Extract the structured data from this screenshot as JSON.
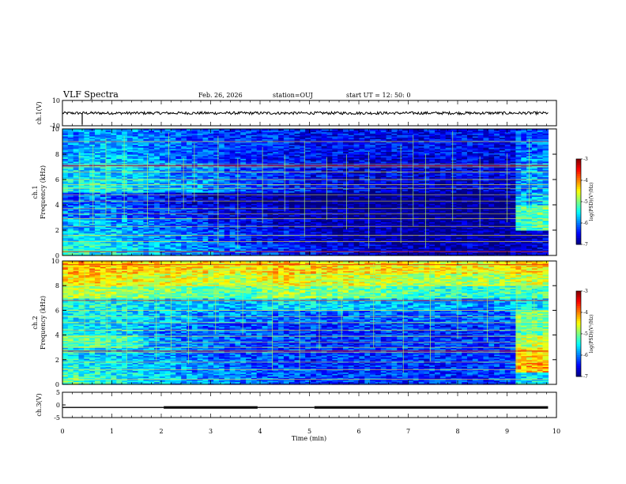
{
  "header": {
    "title": "VLF Spectra",
    "date": "Feb. 26, 2026",
    "station": "station=OUJ",
    "start_ut": "start  UT =   12: 50: 0"
  },
  "chart_data": {
    "type": "heatmap",
    "x_axis": {
      "label": "Time (min)",
      "range": [
        0,
        10
      ],
      "ticks": [
        "0",
        "1",
        "2",
        "3",
        "4",
        "5",
        "6",
        "7",
        "8",
        "9",
        "10"
      ]
    },
    "panels": [
      {
        "id": "ch1-waveform",
        "type": "line",
        "ylabel": "ch.1(V)",
        "ylim": [
          -10,
          10
        ],
        "yticks": [
          "10",
          "-10"
        ],
        "baseline_v": 0,
        "spikes": [
          {
            "t": 0.4,
            "v": -9
          }
        ]
      },
      {
        "id": "ch1-spectrogram",
        "type": "heatmap",
        "ylabel": "ch.1\nFrequency (kHz)",
        "ylim": [
          0,
          10
        ],
        "yticks": [
          "0",
          "2",
          "4",
          "6",
          "8",
          "10"
        ],
        "data_end_min": 9.83,
        "colorbar": {
          "label": "log(PSD)(V²/Hz)",
          "range": [
            -7,
            -3
          ],
          "ticks": [
            "-3",
            "-4",
            "-5",
            "-6",
            "-7"
          ]
        },
        "grid_rows": [
          [
            -5.4,
            -5.4,
            -5.5,
            -5.5,
            -5.6,
            -5.7,
            -5.8,
            -5.9,
            -6.0,
            -6.0,
            -6.1,
            -6.2,
            -6.3,
            -6.3,
            -6.4,
            -6.5,
            -6.6,
            -6.6,
            -6.7,
            -6.7,
            -6.8,
            -6.8,
            -6.8,
            -6.8,
            -6.8,
            -6.8,
            -6.8,
            -6.8,
            -6.8,
            -6.7
          ],
          [
            -5.6,
            -5.6,
            -5.6,
            -5.7,
            -5.8,
            -5.9,
            -6.0,
            -6.0,
            -6.1,
            -6.2,
            -6.3,
            -6.4,
            -6.4,
            -6.5,
            -6.6,
            -6.7,
            -6.7,
            -6.8,
            -6.8,
            -6.8,
            -6.9,
            -6.9,
            -6.9,
            -6.9,
            -6.9,
            -6.9,
            -6.9,
            -6.9,
            -6.9,
            -6.7
          ],
          [
            -5.8,
            -5.8,
            -5.8,
            -5.9,
            -6.0,
            -6.1,
            -6.2,
            -6.2,
            -6.3,
            -6.4,
            -6.5,
            -6.5,
            -6.6,
            -6.7,
            -6.7,
            -6.8,
            -6.8,
            -6.9,
            -6.9,
            -6.9,
            -6.9,
            -6.9,
            -6.9,
            -6.9,
            -6.9,
            -6.9,
            -6.9,
            -6.9,
            -5.3,
            -5.2
          ],
          [
            -6.0,
            -6.0,
            -6.0,
            -6.1,
            -6.2,
            -6.3,
            -6.3,
            -6.4,
            -6.5,
            -6.6,
            -6.6,
            -6.7,
            -6.7,
            -6.8,
            -6.8,
            -6.9,
            -6.9,
            -6.9,
            -7.0,
            -7.0,
            -7.0,
            -7.0,
            -7.0,
            -7.0,
            -7.0,
            -7.0,
            -7.0,
            -7.0,
            -5.2,
            -5.1
          ],
          [
            -6.2,
            -6.1,
            -6.1,
            -6.2,
            -6.3,
            -6.4,
            -6.5,
            -6.6,
            -6.7,
            -6.7,
            -6.8,
            -6.8,
            -6.9,
            -6.9,
            -7.0,
            -7.0,
            -7.0,
            -7.0,
            -7.0,
            -7.0,
            -7.0,
            -7.0,
            -7.0,
            -7.0,
            -7.0,
            -7.0,
            -7.0,
            -7.0,
            -5.8,
            -5.7
          ],
          [
            -5.5,
            -5.4,
            -5.4,
            -5.5,
            -5.6,
            -5.7,
            -5.8,
            -5.9,
            -5.9,
            -6.0,
            -6.1,
            -6.2,
            -6.3,
            -6.3,
            -6.4,
            -6.5,
            -6.5,
            -6.6,
            -6.6,
            -6.6,
            -6.7,
            -6.7,
            -6.7,
            -6.7,
            -6.7,
            -6.7,
            -6.7,
            -6.7,
            -6.0,
            -5.9
          ],
          [
            -5.6,
            -5.6,
            -5.6,
            -5.6,
            -5.7,
            -5.8,
            -5.9,
            -6.0,
            -6.0,
            -6.1,
            -6.2,
            -6.2,
            -6.3,
            -6.4,
            -6.4,
            -6.5,
            -6.5,
            -6.6,
            -6.6,
            -6.6,
            -6.6,
            -6.6,
            -6.6,
            -6.6,
            -6.6,
            -6.6,
            -6.6,
            -6.6,
            -5.9,
            -5.9
          ],
          [
            -5.8,
            -5.7,
            -5.7,
            -5.7,
            -5.8,
            -5.9,
            -6.0,
            -6.1,
            -6.1,
            -6.2,
            -6.3,
            -6.3,
            -6.4,
            -6.4,
            -6.5,
            -6.5,
            -6.6,
            -6.6,
            -6.6,
            -6.6,
            -6.6,
            -6.6,
            -6.6,
            -6.6,
            -6.6,
            -6.6,
            -6.6,
            -6.6,
            -6.0,
            -6.0
          ],
          [
            -5.9,
            -5.8,
            -5.8,
            -5.8,
            -5.9,
            -6.0,
            -6.1,
            -6.1,
            -6.2,
            -6.2,
            -6.3,
            -6.3,
            -6.4,
            -6.4,
            -6.5,
            -6.5,
            -6.5,
            -6.5,
            -6.5,
            -6.5,
            -6.5,
            -6.5,
            -6.5,
            -6.5,
            -6.5,
            -6.5,
            -6.5,
            -6.5,
            -6.1,
            -6.1
          ],
          [
            -6.0,
            -5.9,
            -5.9,
            -5.9,
            -6.0,
            -6.1,
            -6.1,
            -6.2,
            -6.2,
            -6.3,
            -6.3,
            -6.3,
            -6.4,
            -6.4,
            -6.4,
            -6.5,
            -6.5,
            -6.5,
            -6.5,
            -6.5,
            -6.5,
            -6.5,
            -6.5,
            -6.5,
            -6.5,
            -6.5,
            -6.5,
            -6.5,
            -6.2,
            -6.2
          ]
        ],
        "tones_khz": [
          0.3,
          1.1,
          1.6,
          2.3,
          2.9,
          3.3,
          3.7,
          4.3,
          4.8,
          5.3,
          5.6,
          6.0,
          6.6,
          7.0,
          7.2,
          9.0
        ],
        "red_tones_khz": [
          0.3,
          7.1
        ],
        "sferic_times_min": [
          0.35,
          0.62,
          0.88,
          1.25,
          1.72,
          2.15,
          2.45,
          2.67,
          3.15,
          3.55,
          4.05,
          4.5,
          4.9,
          5.35,
          5.75,
          6.2,
          6.85,
          7.1,
          7.35,
          7.9,
          8.45,
          9.0,
          9.45
        ]
      },
      {
        "id": "ch2-spectrogram",
        "type": "heatmap",
        "ylabel": "ch.2\nFrequency (kHz)",
        "ylim": [
          0,
          10
        ],
        "yticks": [
          "0",
          "2",
          "4",
          "6",
          "8",
          "10"
        ],
        "data_end_min": 9.83,
        "colorbar": {
          "label": "log(PSD)(V²/Hz)",
          "range": [
            -7,
            -3
          ],
          "ticks": [
            "-3",
            "-4",
            "-5",
            "-6",
            "-7"
          ]
        },
        "grid_rows": [
          [
            -5.2,
            -5.3,
            -5.4,
            -5.5,
            -5.6,
            -5.7,
            -5.7,
            -5.8,
            -5.9,
            -5.9,
            -6.0,
            -6.0,
            -6.1,
            -6.1,
            -6.2,
            -6.2,
            -6.2,
            -6.3,
            -6.3,
            -6.3,
            -6.3,
            -6.3,
            -6.3,
            -6.3,
            -6.3,
            -6.3,
            -6.3,
            -6.3,
            -5.6,
            -5.6
          ],
          [
            -5.4,
            -5.5,
            -5.5,
            -5.6,
            -5.7,
            -5.8,
            -5.8,
            -5.9,
            -6.0,
            -6.0,
            -6.1,
            -6.1,
            -6.2,
            -6.2,
            -6.2,
            -6.3,
            -6.3,
            -6.3,
            -6.3,
            -6.3,
            -6.3,
            -6.3,
            -6.3,
            -6.3,
            -6.3,
            -6.3,
            -6.3,
            -6.3,
            -4.2,
            -4.2
          ],
          [
            -5.5,
            -5.6,
            -5.7,
            -5.7,
            -5.8,
            -5.9,
            -5.9,
            -6.0,
            -6.0,
            -6.1,
            -6.1,
            -6.2,
            -6.2,
            -6.2,
            -6.3,
            -6.3,
            -6.3,
            -6.3,
            -6.3,
            -6.3,
            -6.3,
            -6.3,
            -6.3,
            -6.3,
            -6.3,
            -6.3,
            -6.3,
            -6.3,
            -4.4,
            -4.3
          ],
          [
            -5.1,
            -5.1,
            -5.2,
            -5.2,
            -5.4,
            -5.8,
            -5.9,
            -6.0,
            -6.0,
            -6.1,
            -6.1,
            -6.2,
            -6.2,
            -6.2,
            -6.2,
            -6.3,
            -6.3,
            -6.3,
            -6.3,
            -6.3,
            -6.3,
            -6.3,
            -6.3,
            -6.3,
            -6.3,
            -6.3,
            -6.3,
            -6.3,
            -4.8,
            -4.7
          ],
          [
            -5.6,
            -5.6,
            -5.6,
            -5.6,
            -5.7,
            -5.9,
            -6.0,
            -6.0,
            -6.1,
            -6.1,
            -6.2,
            -6.2,
            -6.2,
            -6.3,
            -6.3,
            -6.3,
            -6.3,
            -6.3,
            -6.3,
            -6.3,
            -6.3,
            -6.3,
            -6.3,
            -6.3,
            -6.3,
            -6.3,
            -6.3,
            -6.3,
            -5.2,
            -5.1
          ],
          [
            -5.5,
            -5.5,
            -5.5,
            -5.6,
            -5.6,
            -5.7,
            -5.8,
            -5.8,
            -5.9,
            -5.9,
            -6.0,
            -6.0,
            -6.0,
            -6.1,
            -6.1,
            -6.1,
            -6.1,
            -6.1,
            -6.1,
            -6.1,
            -6.1,
            -6.1,
            -6.1,
            -6.1,
            -6.1,
            -6.1,
            -6.1,
            -6.1,
            -5.0,
            -5.0
          ],
          [
            -5.4,
            -5.4,
            -5.4,
            -5.5,
            -5.5,
            -5.6,
            -5.6,
            -5.7,
            -5.7,
            -5.7,
            -5.8,
            -5.8,
            -5.7,
            -5.6,
            -5.6,
            -5.6,
            -5.6,
            -5.6,
            -5.7,
            -5.7,
            -5.7,
            -5.8,
            -5.8,
            -5.8,
            -5.9,
            -5.9,
            -5.9,
            -5.8,
            -5.6,
            -5.6
          ],
          [
            -4.8,
            -4.8,
            -4.8,
            -4.9,
            -4.9,
            -5.0,
            -5.0,
            -5.1,
            -5.1,
            -5.1,
            -5.2,
            -5.2,
            -5.0,
            -4.9,
            -4.9,
            -5.0,
            -5.0,
            -5.0,
            -5.1,
            -5.1,
            -5.2,
            -5.2,
            -5.3,
            -5.3,
            -5.3,
            -5.3,
            -5.3,
            -5.3,
            -5.2,
            -5.2
          ],
          [
            -4.4,
            -4.4,
            -4.4,
            -4.5,
            -4.5,
            -4.6,
            -4.6,
            -4.6,
            -4.7,
            -4.7,
            -4.7,
            -4.8,
            -4.6,
            -4.5,
            -4.5,
            -4.6,
            -4.6,
            -4.6,
            -4.7,
            -4.7,
            -4.7,
            -4.8,
            -4.8,
            -4.8,
            -4.8,
            -4.8,
            -4.8,
            -4.8,
            -4.7,
            -4.7
          ],
          [
            -4.2,
            -4.2,
            -4.2,
            -4.3,
            -4.3,
            -4.3,
            -4.4,
            -4.4,
            -4.4,
            -4.5,
            -4.5,
            -4.5,
            -4.4,
            -4.3,
            -4.3,
            -4.3,
            -4.4,
            -4.4,
            -4.4,
            -4.4,
            -4.5,
            -4.5,
            -4.5,
            -4.5,
            -4.5,
            -4.5,
            -4.5,
            -4.5,
            -4.4,
            -4.4
          ]
        ],
        "tones_khz": [
          0.4,
          1.2,
          1.8,
          2.6,
          3.0,
          3.4,
          3.9,
          4.4,
          5.0,
          5.5,
          6.0,
          6.8,
          8.0,
          9.2
        ],
        "red_tones_khz": [
          2.7,
          6.8,
          9.7
        ],
        "sferic_times_min": [
          0.45,
          0.9,
          1.3,
          1.9,
          2.2,
          2.55,
          3.1,
          3.65,
          4.25,
          4.8,
          5.2,
          5.65,
          6.3,
          6.9,
          7.45,
          8.0,
          8.6,
          9.2,
          9.55
        ]
      },
      {
        "id": "ch3-waveform",
        "type": "line",
        "ylabel": "ch.3(V)",
        "ylim": [
          -5,
          5
        ],
        "yticks": [
          "5",
          "0",
          "-5"
        ],
        "segments": [
          {
            "t0": 0.0,
            "t1": 2.05,
            "v": -1,
            "weight": "thin"
          },
          {
            "t0": 2.05,
            "t1": 3.95,
            "v": -1,
            "weight": "thick"
          },
          {
            "t0": 3.95,
            "t1": 5.1,
            "v": -1,
            "weight": "thin"
          },
          {
            "t0": 5.1,
            "t1": 9.83,
            "v": -1,
            "weight": "thick"
          }
        ]
      }
    ]
  }
}
